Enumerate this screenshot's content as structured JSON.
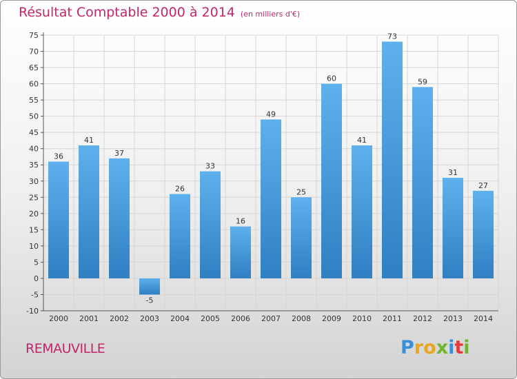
{
  "title": "Résultat Comptable 2000 à 2014",
  "unit": "(en milliers d'€)",
  "commune": "REMAUVILLE",
  "logo": {
    "letters": [
      "P",
      "r",
      "o",
      "x",
      "i",
      "t",
      "i"
    ],
    "colors": [
      "#3a8fd9",
      "#e8a51d",
      "#e8a51d",
      "#6fb62c",
      "#3a8fd9",
      "#e23c3c",
      "#6fb62c"
    ]
  },
  "colors": {
    "title": "#c0276b",
    "bar_top": "#5eb1ec",
    "bar_bottom": "#2f7fc2",
    "grid": "#d6d6d6"
  },
  "chart_data": {
    "type": "bar",
    "categories": [
      "2000",
      "2001",
      "2002",
      "2003",
      "2004",
      "2005",
      "2006",
      "2007",
      "2008",
      "2009",
      "2010",
      "2011",
      "2012",
      "2013",
      "2014"
    ],
    "values": [
      36,
      41,
      37,
      -5,
      26,
      33,
      16,
      49,
      25,
      60,
      41,
      73,
      59,
      31,
      27
    ],
    "ylim": [
      -10,
      75
    ],
    "yticks": [
      -10,
      -5,
      0,
      5,
      10,
      15,
      20,
      25,
      30,
      35,
      40,
      45,
      50,
      55,
      60,
      65,
      70,
      75
    ],
    "grid": true,
    "legend": false
  }
}
